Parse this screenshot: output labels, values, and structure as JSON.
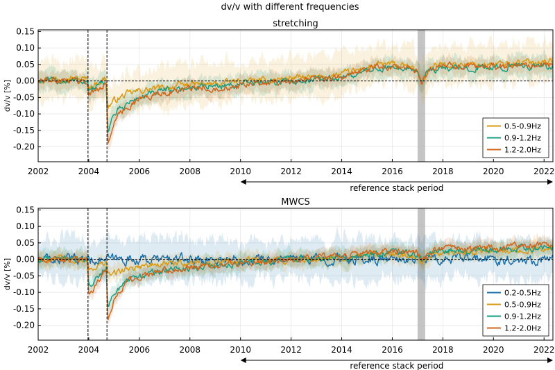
{
  "suptitle": "dv/v with different frequencies",
  "ref_label": "reference stack period",
  "colors": {
    "0.2-0.5Hz": "#1a6fa8",
    "0.5-0.9Hz": "#d99a12",
    "0.9-1.2Hz": "#159e82",
    "1.2-2.0Hz": "#d0651c",
    "shade": "#b0b0b0",
    "grid": "#e6e6e6"
  },
  "chart_data": [
    {
      "type": "line",
      "title": "stretching",
      "xlabel": "",
      "ylabel": "dv/v [%]",
      "xlim": [
        2002.0,
        2022.35
      ],
      "ylim": [
        -0.245,
        0.155
      ],
      "xticks": [
        2002,
        2004,
        2006,
        2008,
        2010,
        2012,
        2014,
        2016,
        2018,
        2020,
        2022
      ],
      "yticks": [
        -0.2,
        -0.15,
        -0.1,
        -0.05,
        0.0,
        0.05,
        0.1,
        0.15
      ],
      "grid": true,
      "legend": "lower-right",
      "zero_line": 0.0,
      "event_lines": [
        2003.97,
        2004.72
      ],
      "shaded_span": [
        2017.0,
        2017.3
      ],
      "reference_period": [
        2010.0,
        2022.35
      ],
      "series": [
        {
          "name": "0.5-0.9Hz",
          "key": "0.5-0.9Hz",
          "x": [
            2002.0,
            2003.0,
            2003.95,
            2004.0,
            2004.7,
            2004.75,
            2005.0,
            2005.5,
            2006.0,
            2007.0,
            2008.0,
            2009.0,
            2010.0,
            2011.0,
            2012.0,
            2013.0,
            2014.0,
            2015.0,
            2015.5,
            2016.0,
            2016.5,
            2017.0,
            2017.15,
            2017.5,
            2018.0,
            2019.0,
            2020.0,
            2021.0,
            2022.0,
            2022.35
          ],
          "y": [
            0.005,
            0.01,
            0.005,
            -0.02,
            0.01,
            -0.08,
            -0.06,
            -0.04,
            -0.03,
            -0.02,
            -0.01,
            -0.01,
            0.0,
            0.0,
            0.01,
            0.01,
            0.02,
            0.04,
            0.05,
            0.05,
            0.045,
            0.03,
            -0.005,
            0.04,
            0.05,
            0.05,
            0.05,
            0.055,
            0.06,
            0.06
          ],
          "band": 0.06
        },
        {
          "name": "0.9-1.2Hz",
          "key": "0.9-1.2Hz",
          "x": [
            2002.0,
            2003.0,
            2003.95,
            2004.0,
            2004.7,
            2004.75,
            2005.0,
            2005.5,
            2006.0,
            2007.0,
            2008.0,
            2009.0,
            2010.0,
            2011.0,
            2012.0,
            2013.0,
            2014.0,
            2015.0,
            2015.5,
            2016.0,
            2016.5,
            2017.0,
            2017.15,
            2017.5,
            2018.0,
            2019.0,
            2020.0,
            2021.0,
            2022.0,
            2022.35
          ],
          "y": [
            0.0,
            0.0,
            0.0,
            -0.03,
            -0.005,
            -0.15,
            -0.1,
            -0.07,
            -0.05,
            -0.03,
            -0.02,
            -0.015,
            -0.01,
            -0.005,
            0.0,
            0.005,
            0.01,
            0.03,
            0.04,
            0.04,
            0.04,
            0.03,
            -0.005,
            0.035,
            0.04,
            0.04,
            0.04,
            0.045,
            0.045,
            0.045
          ],
          "band": 0.03
        },
        {
          "name": "1.2-2.0Hz",
          "key": "1.2-2.0Hz",
          "x": [
            2002.0,
            2003.0,
            2003.95,
            2004.0,
            2004.7,
            2004.75,
            2005.0,
            2005.5,
            2006.0,
            2007.0,
            2008.0,
            2009.0,
            2010.0,
            2011.0,
            2012.0,
            2013.0,
            2014.0,
            2015.0,
            2015.5,
            2016.0,
            2016.5,
            2017.0,
            2017.15,
            2017.5,
            2018.0,
            2019.0,
            2020.0,
            2021.0,
            2022.0,
            2022.35
          ],
          "y": [
            0.0,
            0.005,
            0.0,
            -0.04,
            -0.01,
            -0.2,
            -0.12,
            -0.08,
            -0.055,
            -0.035,
            -0.025,
            -0.02,
            -0.015,
            -0.005,
            0.0,
            0.005,
            0.01,
            0.035,
            0.045,
            0.045,
            0.04,
            0.03,
            -0.01,
            0.04,
            0.045,
            0.045,
            0.045,
            0.05,
            0.05,
            0.05
          ],
          "band": 0.025
        }
      ]
    },
    {
      "type": "line",
      "title": "MWCS",
      "xlabel": "",
      "ylabel": "dv/v [%]",
      "xlim": [
        2002.0,
        2022.35
      ],
      "ylim": [
        -0.245,
        0.155
      ],
      "xticks": [
        2002,
        2004,
        2006,
        2008,
        2010,
        2012,
        2014,
        2016,
        2018,
        2020,
        2022
      ],
      "yticks": [
        -0.2,
        -0.15,
        -0.1,
        -0.05,
        0.0,
        0.05,
        0.1,
        0.15
      ],
      "grid": true,
      "legend": "lower-right",
      "zero_line": 0.0,
      "event_lines": [
        2003.97,
        2004.72
      ],
      "shaded_span": [
        2017.0,
        2017.3
      ],
      "reference_period": [
        2010.0,
        2022.35
      ],
      "series": [
        {
          "name": "0.2-0.5Hz",
          "key": "0.2-0.5Hz",
          "x": [
            2002.0,
            2004.0,
            2006.0,
            2008.0,
            2010.0,
            2012.0,
            2014.0,
            2016.0,
            2018.0,
            2020.0,
            2022.35
          ],
          "y": [
            0.0,
            0.0,
            0.0,
            0.0,
            0.0,
            0.0,
            0.0,
            0.0,
            0.0,
            0.0,
            0.0
          ],
          "band": 0.06
        },
        {
          "name": "0.5-0.9Hz",
          "key": "0.5-0.9Hz",
          "x": [
            2002.0,
            2003.0,
            2003.95,
            2004.0,
            2004.7,
            2004.75,
            2005.0,
            2005.5,
            2006.0,
            2007.0,
            2008.0,
            2009.0,
            2010.0,
            2012.0,
            2014.0,
            2016.0,
            2017.0,
            2017.15,
            2017.5,
            2018.0,
            2020.0,
            2022.35
          ],
          "y": [
            0.0,
            0.0,
            0.0,
            -0.03,
            -0.01,
            -0.05,
            -0.04,
            -0.03,
            -0.02,
            -0.015,
            -0.01,
            -0.01,
            -0.005,
            0.0,
            0.005,
            0.015,
            0.01,
            -0.005,
            0.015,
            0.02,
            0.025,
            0.03
          ],
          "band": 0.025
        },
        {
          "name": "0.9-1.2Hz",
          "key": "0.9-1.2Hz",
          "x": [
            2002.0,
            2003.0,
            2003.95,
            2004.0,
            2004.7,
            2004.75,
            2005.0,
            2005.5,
            2006.0,
            2007.0,
            2008.0,
            2009.0,
            2010.0,
            2012.0,
            2014.0,
            2016.0,
            2017.0,
            2017.15,
            2017.5,
            2018.0,
            2020.0,
            2022.35
          ],
          "y": [
            0.0,
            0.005,
            0.0,
            -0.08,
            -0.02,
            -0.14,
            -0.1,
            -0.07,
            -0.05,
            -0.035,
            -0.025,
            -0.02,
            -0.01,
            0.0,
            0.005,
            0.02,
            0.015,
            -0.005,
            0.02,
            0.025,
            0.03,
            0.035
          ],
          "band": 0.025
        },
        {
          "name": "1.2-2.0Hz",
          "key": "1.2-2.0Hz",
          "x": [
            2002.0,
            2003.0,
            2003.95,
            2004.0,
            2004.7,
            2004.75,
            2005.0,
            2005.5,
            2006.0,
            2007.0,
            2008.0,
            2009.0,
            2010.0,
            2012.0,
            2014.0,
            2016.0,
            2017.0,
            2017.15,
            2017.5,
            2018.0,
            2020.0,
            2022.35
          ],
          "y": [
            0.0,
            0.0,
            0.0,
            -0.11,
            -0.03,
            -0.18,
            -0.12,
            -0.07,
            -0.05,
            -0.035,
            -0.025,
            -0.02,
            -0.01,
            0.0,
            0.01,
            0.025,
            0.02,
            -0.005,
            0.025,
            0.03,
            0.035,
            0.045
          ],
          "band": 0.02
        }
      ]
    }
  ]
}
